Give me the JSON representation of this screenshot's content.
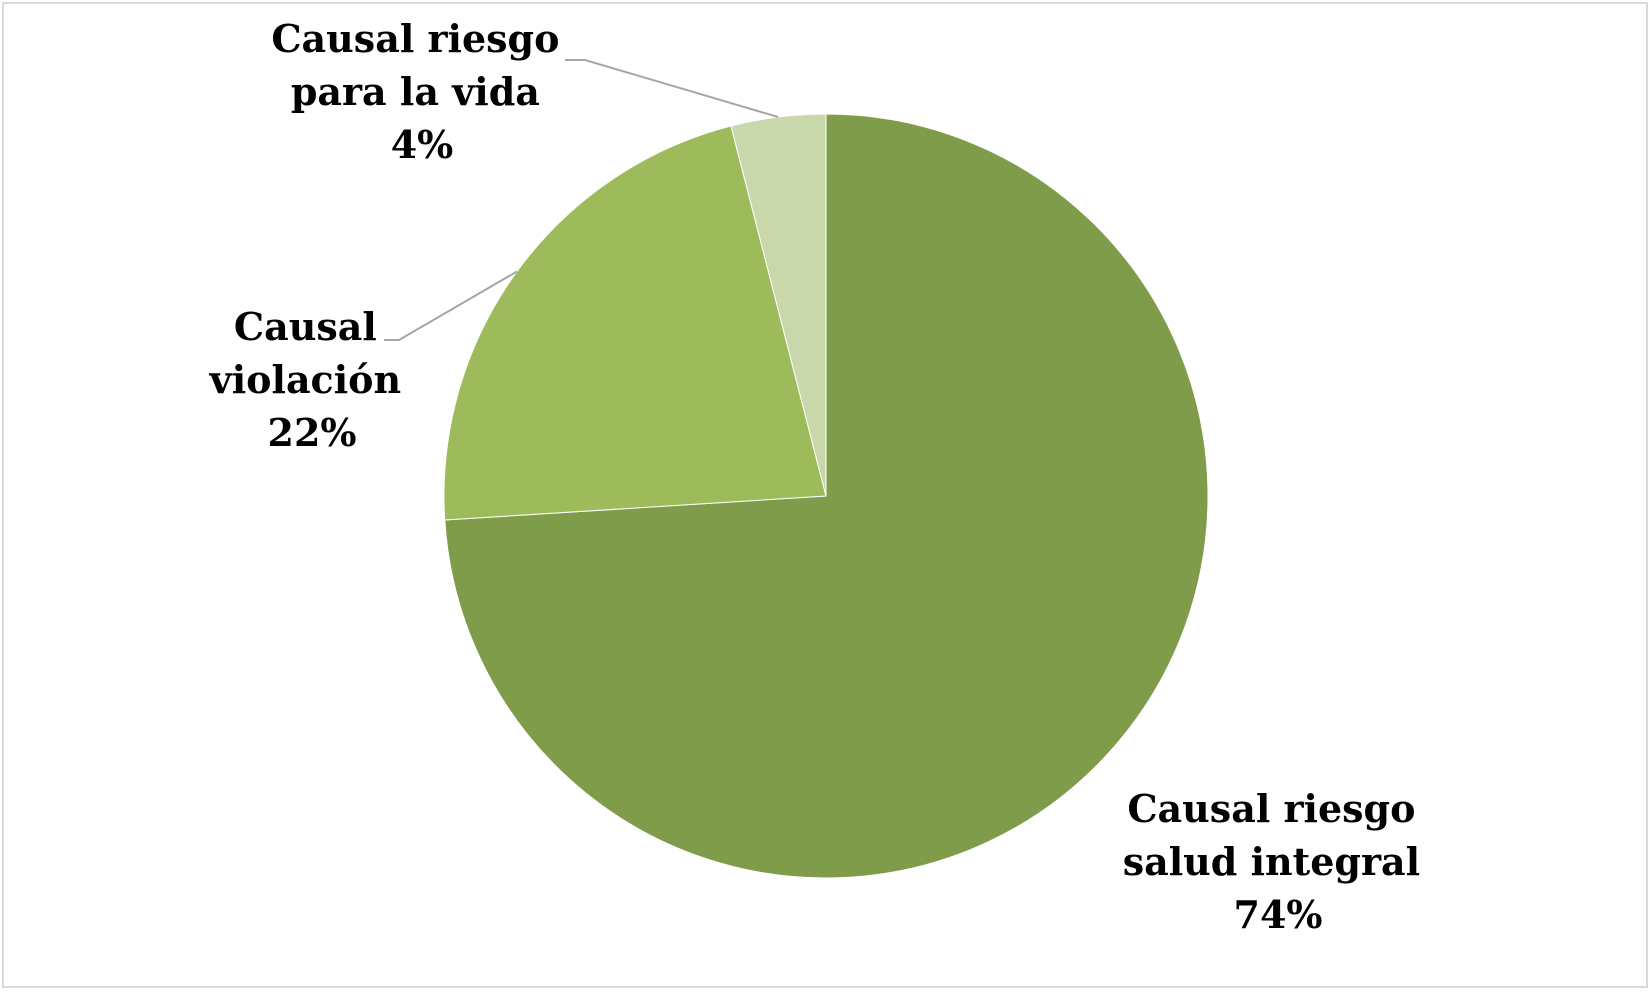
{
  "chart_data": {
    "type": "pie",
    "title": "",
    "slices": [
      {
        "label": [
          "Causal riesgo",
          "salud integral"
        ],
        "value": 74,
        "display": "74%",
        "color": "#7f9c4a"
      },
      {
        "label": [
          "Causal",
          "violación"
        ],
        "value": 22,
        "display": "22%",
        "color": "#9dbb5a"
      },
      {
        "label": [
          "Causal riesgo",
          "para la vida"
        ],
        "value": 4,
        "display": "4%",
        "color": "#c8d8ab"
      }
    ],
    "start_angle_deg": 0,
    "direction": "clockwise",
    "legend": "none",
    "leader_line_color": "#a6a6a6",
    "border_color": "#d9d9d9"
  }
}
